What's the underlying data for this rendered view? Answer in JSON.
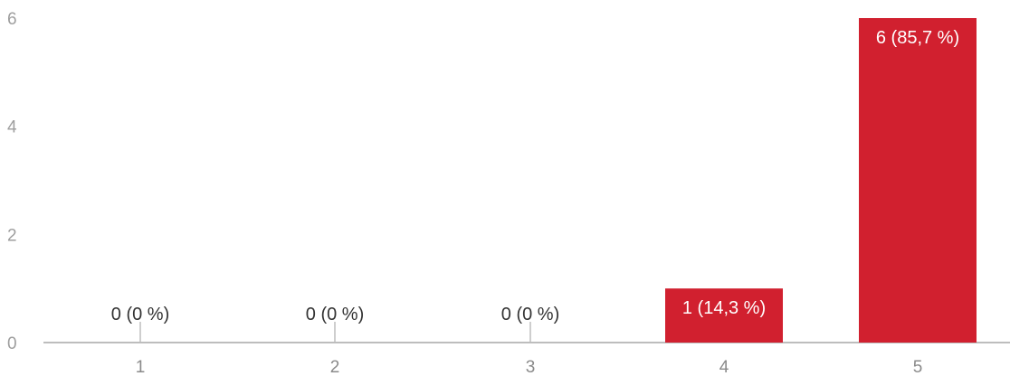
{
  "chart_data": {
    "type": "bar",
    "categories": [
      "1",
      "2",
      "3",
      "4",
      "5"
    ],
    "values": [
      0,
      0,
      0,
      1,
      6
    ],
    "data_labels": [
      "0 (0 %)",
      "0 (0 %)",
      "0 (0 %)",
      "1 (14,3 %)",
      "6 (85,7 %)"
    ],
    "y_ticks": [
      "0",
      "2",
      "4",
      "6"
    ],
    "ylim": [
      0,
      6
    ],
    "grid": false,
    "legend": "none",
    "title": "",
    "xlabel": "",
    "ylabel": "",
    "colors": {
      "bar": "#d1202f",
      "axis": "#bdbdbd",
      "tick_text": "#9e9e9e",
      "zero_label": "#333333",
      "bar_label": "#ffffff"
    }
  }
}
